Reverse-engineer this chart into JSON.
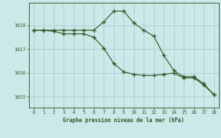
{
  "line1_x": [
    0,
    1,
    2,
    3,
    4,
    5,
    6,
    7,
    8,
    9,
    10,
    11,
    12,
    13,
    14,
    15,
    16,
    17,
    18
  ],
  "line1_y": [
    1017.8,
    1017.8,
    1017.8,
    1017.8,
    1017.8,
    1017.8,
    1017.8,
    1018.15,
    1018.6,
    1018.6,
    1018.1,
    1017.8,
    1017.55,
    1016.75,
    1016.1,
    1015.85,
    1015.85,
    1015.55,
    1015.1
  ],
  "line2_x": [
    0,
    1,
    2,
    3,
    4,
    5,
    6,
    7,
    8,
    9,
    10,
    11,
    12,
    13,
    14,
    15,
    16,
    17,
    18
  ],
  "line2_y": [
    1017.8,
    1017.8,
    1017.75,
    1017.65,
    1017.65,
    1017.65,
    1017.5,
    1017.05,
    1016.4,
    1016.05,
    1015.95,
    1015.9,
    1015.9,
    1015.95,
    1016.0,
    1015.8,
    1015.8,
    1015.5,
    1015.1
  ],
  "line_color": "#2d5a27",
  "bg_color": "#cce8e8",
  "grid_color": "#aad0d0",
  "xlabel": "Graphe pression niveau de la mer (hPa)",
  "xlabel_color": "#2d5a27",
  "tick_color": "#2d5a27",
  "yticks": [
    1015,
    1016,
    1017,
    1018
  ],
  "xticks": [
    0,
    1,
    2,
    3,
    4,
    5,
    6,
    7,
    8,
    9,
    10,
    11,
    12,
    13,
    14,
    15,
    16,
    17,
    18
  ],
  "ylim": [
    1014.55,
    1018.95
  ],
  "xlim": [
    -0.5,
    18.5
  ]
}
